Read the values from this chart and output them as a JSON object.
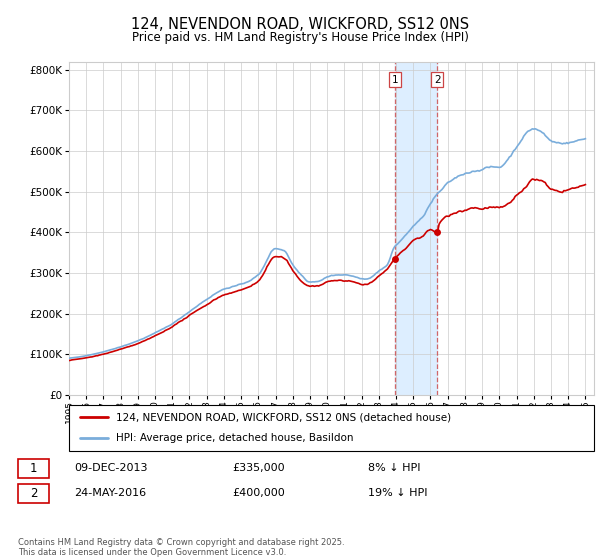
{
  "title": "124, NEVENDON ROAD, WICKFORD, SS12 0NS",
  "subtitle": "Price paid vs. HM Land Registry's House Price Index (HPI)",
  "legend_label_red": "124, NEVENDON ROAD, WICKFORD, SS12 0NS (detached house)",
  "legend_label_blue": "HPI: Average price, detached house, Basildon",
  "sale1_date": "09-DEC-2013",
  "sale1_price": "£335,000",
  "sale1_hpi": "8% ↓ HPI",
  "sale2_date": "24-MAY-2016",
  "sale2_price": "£400,000",
  "sale2_hpi": "19% ↓ HPI",
  "footer": "Contains HM Land Registry data © Crown copyright and database right 2025.\nThis data is licensed under the Open Government Licence v3.0.",
  "red_color": "#cc0000",
  "blue_color": "#7aaddb",
  "sale1_year": 2013.92,
  "sale2_year": 2016.4,
  "highlight_color": "#ddeeff",
  "grid_color": "#cccccc",
  "background_color": "#ffffff",
  "ylim_max": 800000,
  "xlim_min": 1995,
  "xlim_max": 2025
}
